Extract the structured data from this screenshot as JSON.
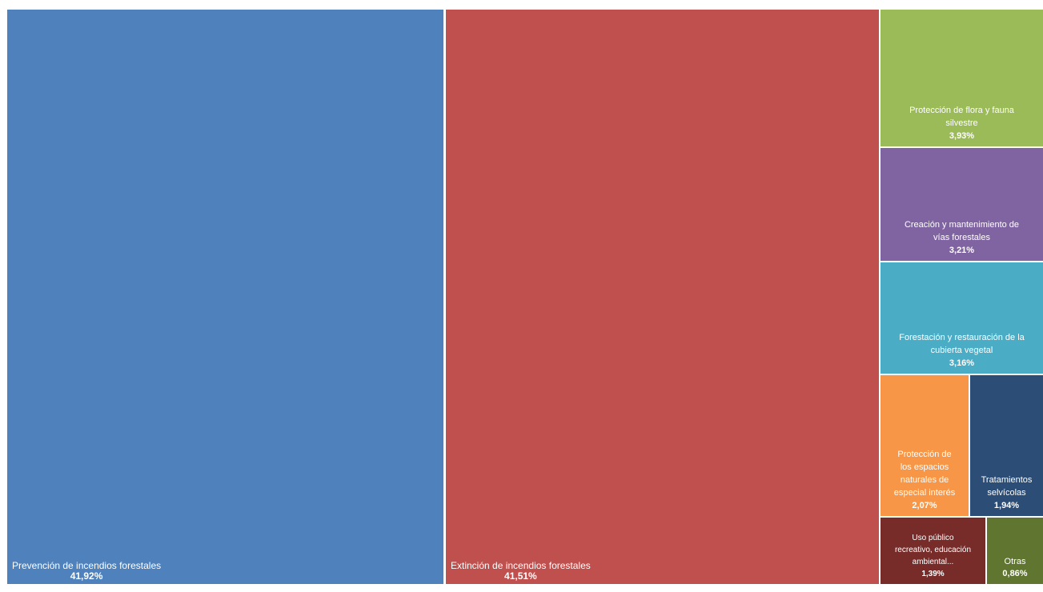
{
  "chart_data": {
    "type": "treemap",
    "title": "",
    "colors": {
      "prevencion": "#4F81BD",
      "extincion": "#C0504D",
      "flora_fauna": "#9BBB59",
      "vias": "#8064A2",
      "forestacion": "#4BACC6",
      "espacios": "#F79646",
      "tratamientos": "#2C4D75",
      "uso_publico": "#772C2A",
      "otras": "#5F7530"
    },
    "items": [
      {
        "key": "prevencion",
        "lines": [
          "Prevención de incendios forestales"
        ],
        "value_label": "41,92%",
        "value": 41.92
      },
      {
        "key": "extincion",
        "lines": [
          "Extinción de incendios forestales"
        ],
        "value_label": "41,51%",
        "value": 41.51
      },
      {
        "key": "flora_fauna",
        "lines": [
          "Protección de flora y fauna",
          "silvestre"
        ],
        "value_label": "3,93%",
        "value": 3.93
      },
      {
        "key": "vias",
        "lines": [
          "Creación y mantenimiento de",
          "vías forestales"
        ],
        "value_label": "3,21%",
        "value": 3.21
      },
      {
        "key": "forestacion",
        "lines": [
          "Forestación y restauración de la",
          "cubierta vegetal"
        ],
        "value_label": "3,16%",
        "value": 3.16
      },
      {
        "key": "espacios",
        "lines": [
          "Protección de",
          "los espacios",
          "naturales de",
          "especial interés"
        ],
        "value_label": "2,07%",
        "value": 2.07
      },
      {
        "key": "tratamientos",
        "lines": [
          "Tratamientos",
          "selvícolas"
        ],
        "value_label": "1,94%",
        "value": 1.94
      },
      {
        "key": "uso_publico",
        "lines": [
          "Uso público",
          "recreativo, educación",
          "ambiental..."
        ],
        "value_label": "1,39%",
        "value": 1.39
      },
      {
        "key": "otras",
        "lines": [
          "Otras"
        ],
        "value_label": "0,86%",
        "value": 0.86
      }
    ]
  }
}
